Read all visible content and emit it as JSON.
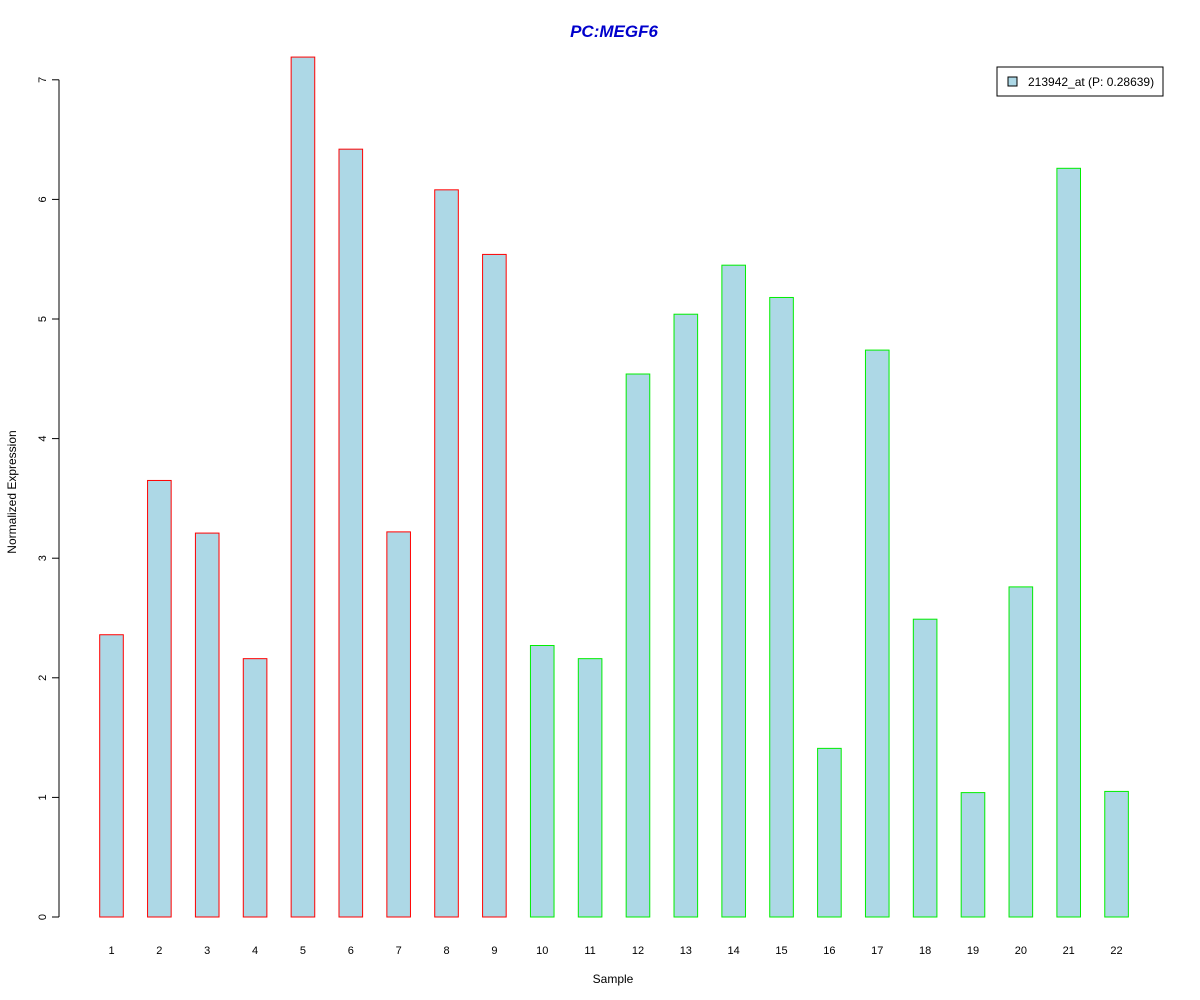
{
  "chart_data": {
    "type": "bar",
    "title": "PC:MEGF6",
    "xlabel": "Sample",
    "ylabel": "Normalized Expression",
    "categories": [
      "1",
      "2",
      "3",
      "4",
      "5",
      "6",
      "7",
      "8",
      "9",
      "10",
      "11",
      "12",
      "13",
      "14",
      "15",
      "16",
      "17",
      "18",
      "19",
      "20",
      "21",
      "22"
    ],
    "series": [
      {
        "name": "213942_at (P: 0.28639)",
        "values": [
          2.36,
          3.65,
          3.21,
          2.16,
          7.19,
          6.42,
          3.22,
          6.08,
          5.54,
          2.27,
          2.16,
          4.54,
          5.04,
          5.45,
          5.18,
          1.41,
          4.74,
          2.49,
          1.04,
          2.76,
          6.26,
          1.05
        ]
      }
    ],
    "groups": [
      {
        "from": 1,
        "to": 9,
        "border_color": "#ff0000"
      },
      {
        "from": 10,
        "to": 22,
        "border_color": "#00ee00"
      }
    ],
    "ylim": [
      0,
      7.2
    ],
    "yticks": [
      0,
      1,
      2,
      3,
      4,
      5,
      6,
      7
    ],
    "grid": false,
    "legend_position": "top-right",
    "colors": {
      "bar_fill": "#add8e6",
      "title": "#0000cc",
      "axis": "#000000"
    }
  }
}
